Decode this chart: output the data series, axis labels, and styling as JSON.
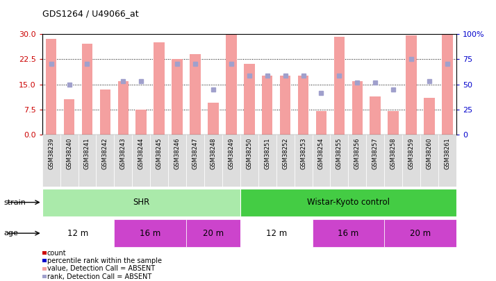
{
  "title": "GDS1264 / U49066_at",
  "samples": [
    "GSM38239",
    "GSM38240",
    "GSM38241",
    "GSM38242",
    "GSM38243",
    "GSM38244",
    "GSM38245",
    "GSM38246",
    "GSM38247",
    "GSM38248",
    "GSM38249",
    "GSM38250",
    "GSM38251",
    "GSM38252",
    "GSM38253",
    "GSM38254",
    "GSM38255",
    "GSM38256",
    "GSM38257",
    "GSM38258",
    "GSM38259",
    "GSM38260",
    "GSM38261"
  ],
  "bar_heights": [
    28.5,
    10.5,
    27.0,
    13.5,
    16.0,
    7.5,
    27.5,
    22.5,
    24.0,
    9.5,
    30.0,
    21.0,
    17.5,
    17.5,
    17.5,
    7.0,
    29.0,
    16.0,
    11.5,
    7.0,
    29.5,
    11.0,
    30.0
  ],
  "blue_sq_y": [
    21.0,
    15.0,
    21.0,
    null,
    16.0,
    16.0,
    null,
    21.0,
    21.0,
    13.5,
    21.0,
    17.5,
    17.5,
    17.5,
    17.5,
    12.5,
    17.5,
    15.5,
    15.5,
    13.5,
    22.5,
    16.0,
    21.0
  ],
  "bar_color": "#f4a0a0",
  "blue_sq_color": "#a0a0cc",
  "ylim_left": [
    0,
    30
  ],
  "yticks_left": [
    0,
    7.5,
    15,
    22.5,
    30
  ],
  "yticks_right": [
    0,
    25,
    50,
    75,
    100
  ],
  "ylabel_left_color": "#cc0000",
  "ylabel_right_color": "#0000cc",
  "dotted_lines": [
    7.5,
    15,
    22.5
  ],
  "strain_labels": [
    {
      "label": "SHR",
      "start": 0,
      "end": 11,
      "color": "#aaeaaa"
    },
    {
      "label": "Wistar-Kyoto control",
      "start": 11,
      "end": 23,
      "color": "#44cc44"
    }
  ],
  "age_labels": [
    {
      "label": "12 m",
      "start": 0,
      "end": 4,
      "color": "#ffffff"
    },
    {
      "label": "16 m",
      "start": 4,
      "end": 8,
      "color": "#cc44cc"
    },
    {
      "label": "20 m",
      "start": 8,
      "end": 11,
      "color": "#cc44cc"
    },
    {
      "label": "12 m",
      "start": 11,
      "end": 15,
      "color": "#ffffff"
    },
    {
      "label": "16 m",
      "start": 15,
      "end": 19,
      "color": "#cc44cc"
    },
    {
      "label": "20 m",
      "start": 19,
      "end": 23,
      "color": "#cc44cc"
    }
  ],
  "legend_items": [
    {
      "label": "count",
      "color": "#cc0000"
    },
    {
      "label": "percentile rank within the sample",
      "color": "#0000cc"
    },
    {
      "label": "value, Detection Call = ABSENT",
      "color": "#f4a0a0"
    },
    {
      "label": "rank, Detection Call = ABSENT",
      "color": "#a0a0cc"
    }
  ],
  "bg_color": "#ffffff",
  "tick_bg_color": "#dddddd"
}
